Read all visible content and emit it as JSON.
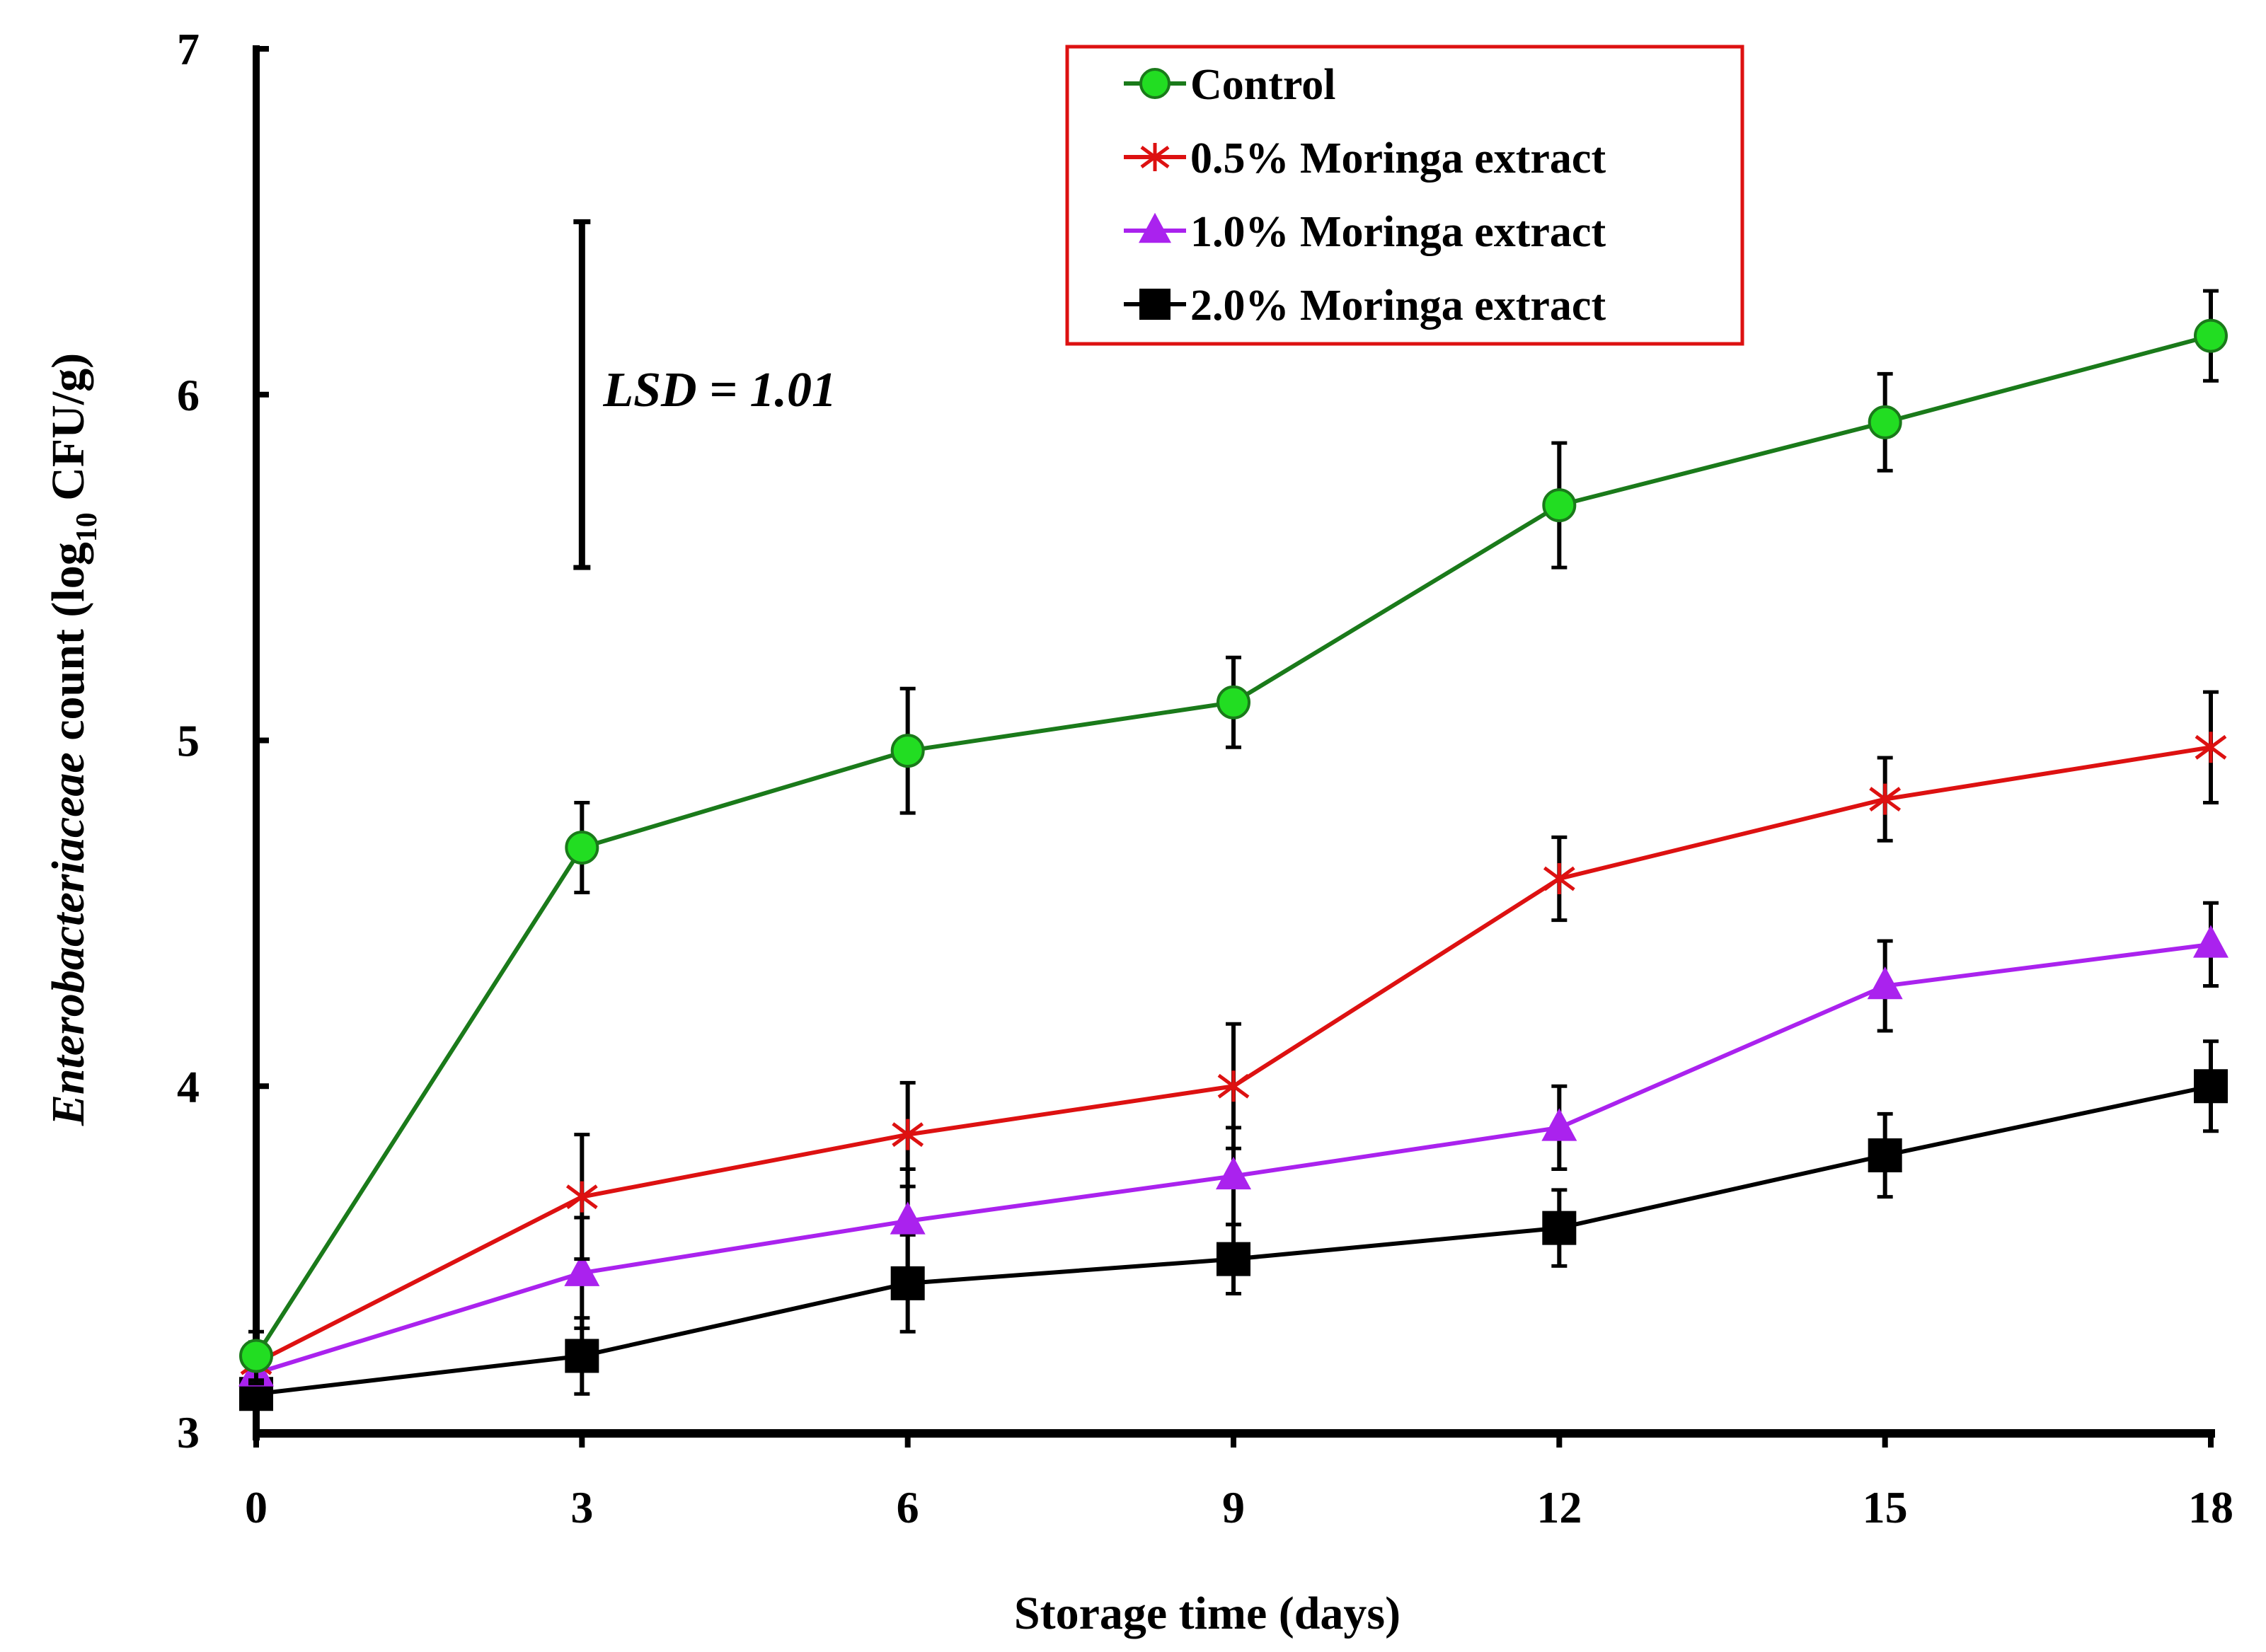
{
  "chart_data": {
    "type": "line",
    "title": "",
    "xlabel": "Storage time (days)",
    "ylabel": {
      "italic_part": "Enterobacteriaceae",
      "prefix": " count (log",
      "subscript": "10",
      "suffix": " CFU/g)"
    },
    "x": [
      0,
      3,
      6,
      9,
      12,
      15,
      18
    ],
    "x_tick_labels": [
      "0",
      "3",
      "6",
      "9",
      "12",
      "15",
      "18"
    ],
    "xlim": [
      0,
      18
    ],
    "ylim": [
      3,
      7
    ],
    "y_ticks": [
      3,
      4,
      5,
      6,
      7
    ],
    "y_tick_labels": [
      "3",
      "4",
      "5",
      "6",
      "7"
    ],
    "grid": false,
    "legend_position": "top-right",
    "series": [
      {
        "name": "Control",
        "color": "#1a7a1a",
        "marker": "circle",
        "marker_fill": "#22dd22",
        "values": [
          3.22,
          4.69,
          4.97,
          5.11,
          5.68,
          5.92,
          6.17
        ],
        "errors": [
          0.07,
          0.13,
          0.18,
          0.13,
          0.18,
          0.14,
          0.13
        ]
      },
      {
        "name": "0.5% Moringa extract",
        "color": "#dd1111",
        "marker": "asterisk",
        "marker_fill": "#dd1111",
        "values": [
          3.2,
          3.68,
          3.86,
          4.0,
          4.6,
          4.83,
          4.98
        ],
        "errors": [
          0.06,
          0.18,
          0.15,
          0.18,
          0.12,
          0.12,
          0.16
        ]
      },
      {
        "name": "1.0% Moringa extract",
        "color": "#aa22ee",
        "marker": "triangle",
        "marker_fill": "#aa22ee",
        "values": [
          3.17,
          3.46,
          3.61,
          3.74,
          3.88,
          4.29,
          4.41
        ],
        "errors": [
          0.06,
          0.16,
          0.15,
          0.14,
          0.12,
          0.13,
          0.12
        ]
      },
      {
        "name": "2.0% Moringa extract",
        "color": "#000000",
        "marker": "square",
        "marker_fill": "#000000",
        "values": [
          3.11,
          3.22,
          3.43,
          3.5,
          3.59,
          3.8,
          4.0
        ],
        "errors": [
          0.04,
          0.11,
          0.14,
          0.1,
          0.11,
          0.12,
          0.13
        ]
      }
    ],
    "annotations": [
      {
        "type": "lsd_bar",
        "label": "LSD = 1.01",
        "x": 3,
        "y_low": 5.5,
        "y_high": 6.5
      }
    ]
  }
}
